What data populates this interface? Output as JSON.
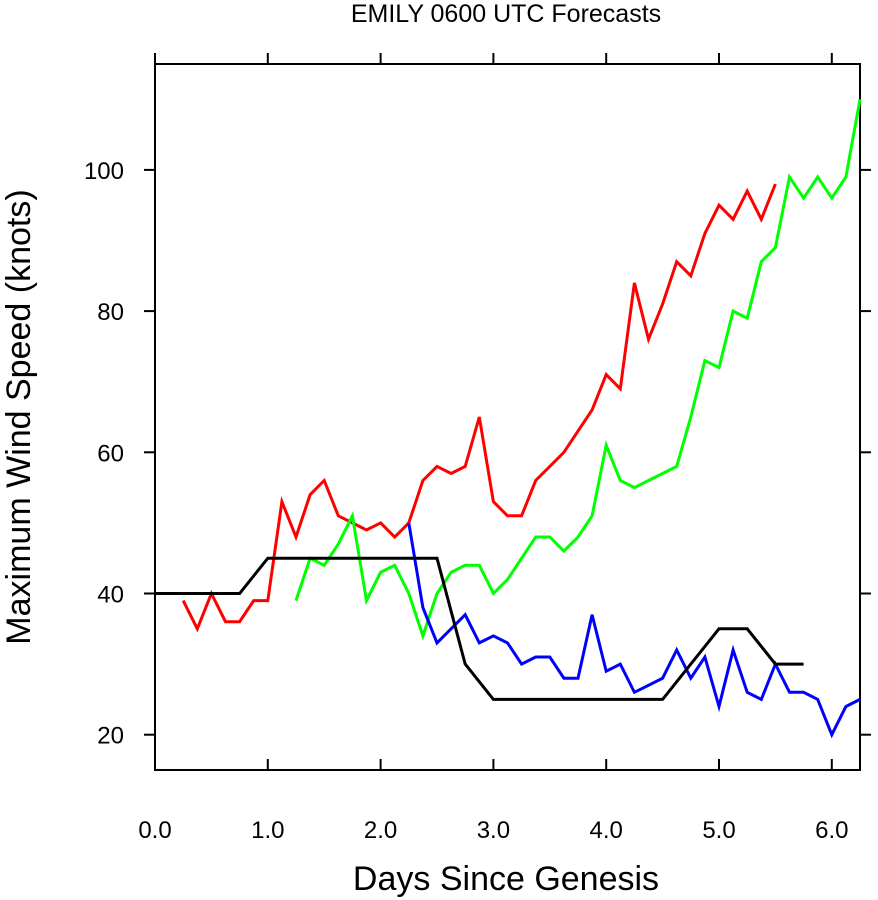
{
  "chart_data": {
    "type": "line",
    "title": "EMILY 0600 UTC Forecasts",
    "xlabel": "Days Since Genesis",
    "ylabel": "Maximum Wind Speed (knots)",
    "xlim": [
      0.0,
      6.25
    ],
    "ylim": [
      15,
      115
    ],
    "xticks": [
      "0.0",
      "1.0",
      "2.0",
      "3.0",
      "4.0",
      "5.0",
      "6.0"
    ],
    "yticks": [
      "20",
      "40",
      "60",
      "80",
      "100"
    ],
    "grid": false,
    "legend": "none",
    "series": [
      {
        "color": "#ff0000",
        "x": [
          0.25,
          0.375,
          0.5,
          0.625,
          0.75,
          0.875,
          1.0,
          1.125,
          1.25,
          1.375,
          1.5,
          1.625,
          1.75,
          1.875,
          2.0,
          2.125,
          2.25,
          2.375,
          2.5,
          2.625,
          2.75,
          2.875,
          3.0,
          3.125,
          3.25,
          3.375,
          3.5,
          3.625,
          3.75,
          3.875,
          4.0,
          4.125,
          4.25,
          4.375,
          4.5,
          4.625,
          4.75,
          4.875,
          5.0,
          5.125,
          5.25,
          5.375,
          5.5
        ],
        "y": [
          39,
          35,
          40,
          36,
          36,
          39,
          39,
          53,
          48,
          54,
          56,
          51,
          50,
          49,
          50,
          48,
          50,
          56,
          58,
          57,
          58,
          65,
          53,
          51,
          51,
          56,
          58,
          60,
          63,
          66,
          71,
          69,
          84,
          76,
          81,
          87,
          85,
          91,
          95,
          93,
          97,
          93,
          98
        ]
      },
      {
        "color": "#00ff00",
        "x": [
          1.25,
          1.375,
          1.5,
          1.625,
          1.75,
          1.875,
          2.0,
          2.125,
          2.25,
          2.375,
          2.5,
          2.625,
          2.75,
          2.875,
          3.0,
          3.125,
          3.25,
          3.375,
          3.5,
          3.625,
          3.75,
          3.875,
          4.0,
          4.125,
          4.25,
          4.375,
          4.5,
          4.625,
          4.75,
          4.875,
          5.0,
          5.125,
          5.25,
          5.375,
          5.5,
          5.625,
          5.75,
          5.875,
          6.0,
          6.125,
          6.25
        ],
        "y": [
          39,
          45,
          44,
          47,
          51,
          39,
          43,
          44,
          40,
          34,
          40,
          43,
          44,
          44,
          40,
          42,
          45,
          48,
          48,
          46,
          48,
          51,
          61,
          56,
          55,
          56,
          57,
          58,
          65,
          73,
          72,
          80,
          79,
          87,
          89,
          99,
          96,
          99,
          96,
          99,
          110
        ]
      },
      {
        "color": "#0000ff",
        "x": [
          2.25,
          2.375,
          2.5,
          2.625,
          2.75,
          2.875,
          3.0,
          3.125,
          3.25,
          3.375,
          3.5,
          3.625,
          3.75,
          3.875,
          4.0,
          4.125,
          4.25,
          4.375,
          4.5,
          4.625,
          4.75,
          4.875,
          5.0,
          5.125,
          5.25,
          5.375,
          5.5,
          5.625,
          5.75,
          5.875,
          6.0,
          6.125,
          6.25
        ],
        "y": [
          50,
          38,
          33,
          35,
          37,
          33,
          34,
          33,
          30,
          31,
          31,
          28,
          28,
          37,
          29,
          30,
          26,
          27,
          28,
          32,
          28,
          31,
          24,
          32,
          26,
          25,
          30,
          26,
          26,
          25,
          20,
          24,
          25
        ]
      },
      {
        "color": "#000000",
        "x": [
          0.0,
          0.75,
          1.0,
          2.5,
          2.75,
          3.0,
          4.5,
          4.75,
          5.0,
          5.25,
          5.5,
          5.75
        ],
        "y": [
          40,
          40,
          45,
          45,
          30,
          25,
          25,
          30,
          35,
          35,
          30,
          30
        ]
      }
    ]
  }
}
